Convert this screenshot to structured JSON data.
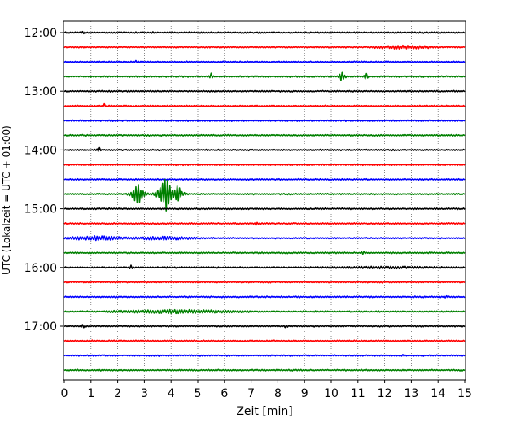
{
  "chart_data": {
    "type": "line",
    "subtype": "helicorder",
    "xlabel": "Zeit  [min]",
    "ylabel": "UTC (Lokalzeit = UTC + 01:00)",
    "xlim": [
      0,
      15
    ],
    "x_ticks": [
      "0",
      "1",
      "2",
      "3",
      "4",
      "5",
      "6",
      "7",
      "8",
      "9",
      "10",
      "11",
      "12",
      "13",
      "14",
      "15"
    ],
    "y_ticks": [
      "12:00",
      "13:00",
      "14:00",
      "15:00",
      "16:00",
      "17:00"
    ],
    "grid": "vertical dotted",
    "trace_minutes": 15,
    "color_cycle": [
      "#000000",
      "#ff0000",
      "#0000ff",
      "#008000"
    ],
    "traces": [
      "12:00",
      "12:15",
      "12:30",
      "12:45",
      "13:00",
      "13:15",
      "13:30",
      "13:45",
      "14:00",
      "14:15",
      "14:30",
      "14:45",
      "15:00",
      "15:15",
      "15:30",
      "15:45",
      "16:00",
      "16:15",
      "16:30",
      "16:45",
      "17:00",
      "17:15",
      "17:30",
      "17:45"
    ],
    "events": [
      {
        "trace": "12:00",
        "minute": 0.7,
        "amp": 0.35
      },
      {
        "trace": "12:00",
        "minute": 3.3,
        "amp": 0.2
      },
      {
        "trace": "12:15",
        "minute": 11.5,
        "minute_end": 14.0,
        "amp": 0.3
      },
      {
        "trace": "12:30",
        "minute": 2.7,
        "amp": 0.3
      },
      {
        "trace": "12:45",
        "minute": 5.5,
        "amp": 0.5
      },
      {
        "trace": "12:45",
        "minute": 10.4,
        "amp": 0.9
      },
      {
        "trace": "12:45",
        "minute": 11.3,
        "amp": 0.6
      },
      {
        "trace": "13:15",
        "minute": 1.5,
        "amp": 0.35
      },
      {
        "trace": "14:00",
        "minute": 1.3,
        "amp": 0.45
      },
      {
        "trace": "14:45",
        "minute": 2.75,
        "amp": 2.3
      },
      {
        "trace": "14:45",
        "minute": 3.8,
        "amp": 3.1
      },
      {
        "trace": "14:45",
        "minute": 4.25,
        "amp": 1.8
      },
      {
        "trace": "15:15",
        "minute": 7.2,
        "amp": 0.4
      },
      {
        "trace": "15:30",
        "minute": 0.0,
        "minute_end": 2.5,
        "amp": 0.35
      },
      {
        "trace": "15:30",
        "minute": 2.5,
        "minute_end": 5.0,
        "amp": 0.3
      },
      {
        "trace": "15:45",
        "minute": 11.2,
        "amp": 0.45
      },
      {
        "trace": "16:00",
        "minute": 2.5,
        "amp": 0.35
      },
      {
        "trace": "16:00",
        "minute": 9.0,
        "minute_end": 15.0,
        "amp": 0.2
      },
      {
        "trace": "16:15",
        "minute": 2.1,
        "amp": 0.25
      },
      {
        "trace": "16:30",
        "minute": 14.3,
        "amp": 0.35
      },
      {
        "trace": "16:45",
        "minute": 1.5,
        "minute_end": 7.0,
        "amp": 0.3
      },
      {
        "trace": "17:00",
        "minute": 0.7,
        "amp": 0.4
      },
      {
        "trace": "17:00",
        "minute": 8.3,
        "amp": 0.35
      },
      {
        "trace": "17:30",
        "minute": 12.7,
        "amp": 0.3
      }
    ]
  }
}
